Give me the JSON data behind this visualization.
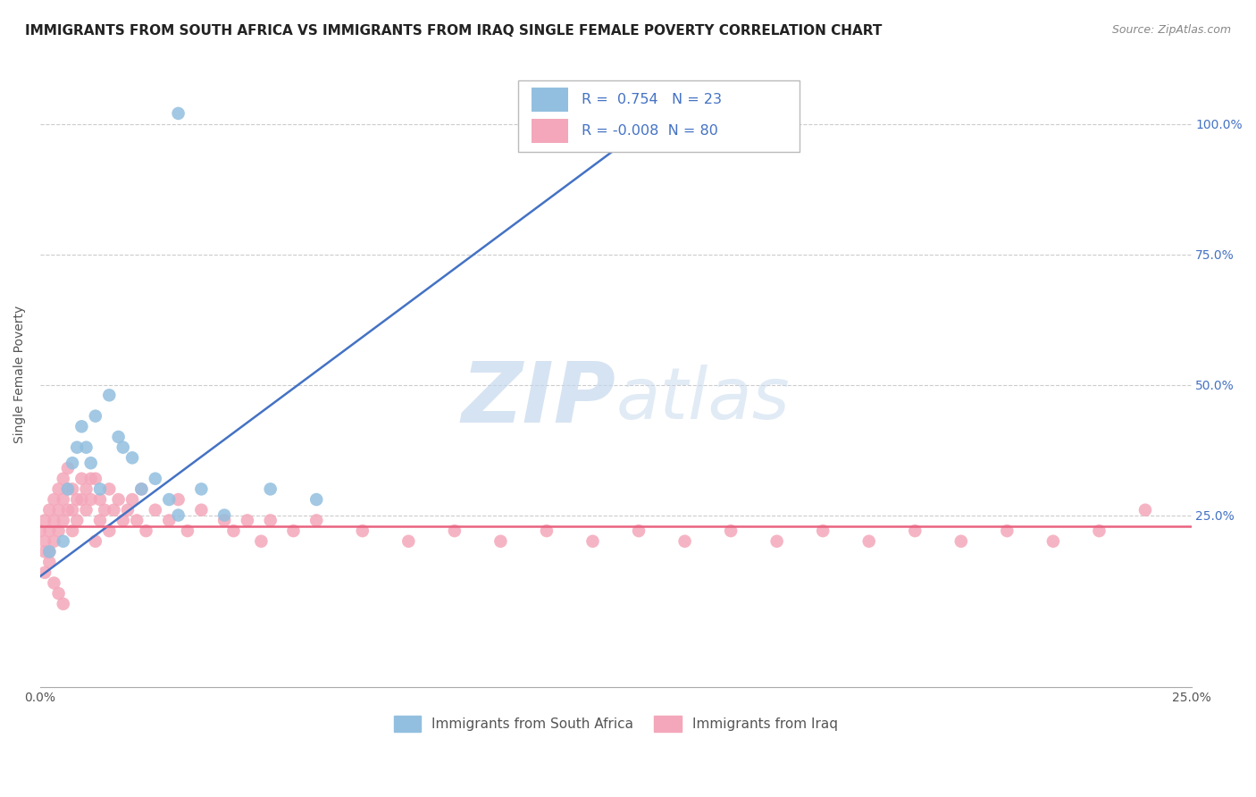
{
  "title": "IMMIGRANTS FROM SOUTH AFRICA VS IMMIGRANTS FROM IRAQ SINGLE FEMALE POVERTY CORRELATION CHART",
  "source": "Source: ZipAtlas.com",
  "ylabel": "Single Female Poverty",
  "watermark_zip": "ZIP",
  "watermark_atlas": "atlas",
  "xlim": [
    0.0,
    0.25
  ],
  "ylim": [
    -0.08,
    1.12
  ],
  "ytick_vals_right": [
    0.25,
    0.5,
    0.75,
    1.0
  ],
  "ytick_labels_right": [
    "25.0%",
    "50.0%",
    "75.0%",
    "100.0%"
  ],
  "blue_color": "#92BFDF",
  "pink_color": "#F4A7BA",
  "blue_line_color": "#4472C4",
  "pink_line_color": "#E9627E",
  "legend_blue_R": "0.754",
  "legend_blue_N": "23",
  "legend_pink_R": "-0.008",
  "legend_pink_N": "80",
  "legend_label_blue": "Immigrants from South Africa",
  "legend_label_pink": "Immigrants from Iraq",
  "blue_scatter_x": [
    0.002,
    0.005,
    0.006,
    0.007,
    0.008,
    0.009,
    0.01,
    0.011,
    0.012,
    0.013,
    0.015,
    0.017,
    0.018,
    0.02,
    0.022,
    0.025,
    0.028,
    0.03,
    0.035,
    0.04,
    0.05,
    0.06,
    0.03
  ],
  "blue_scatter_y": [
    0.18,
    0.2,
    0.3,
    0.35,
    0.38,
    0.42,
    0.38,
    0.35,
    0.44,
    0.3,
    0.48,
    0.4,
    0.38,
    0.36,
    0.3,
    0.32,
    0.28,
    0.25,
    0.3,
    0.25,
    0.3,
    0.28,
    1.02
  ],
  "pink_scatter_x": [
    0.0,
    0.001,
    0.001,
    0.001,
    0.002,
    0.002,
    0.002,
    0.003,
    0.003,
    0.003,
    0.004,
    0.004,
    0.004,
    0.005,
    0.005,
    0.005,
    0.006,
    0.006,
    0.006,
    0.007,
    0.007,
    0.007,
    0.008,
    0.008,
    0.009,
    0.009,
    0.01,
    0.01,
    0.011,
    0.011,
    0.012,
    0.012,
    0.013,
    0.013,
    0.014,
    0.015,
    0.015,
    0.016,
    0.017,
    0.018,
    0.019,
    0.02,
    0.021,
    0.022,
    0.023,
    0.025,
    0.028,
    0.03,
    0.032,
    0.035,
    0.04,
    0.042,
    0.045,
    0.048,
    0.05,
    0.055,
    0.06,
    0.07,
    0.08,
    0.09,
    0.1,
    0.11,
    0.12,
    0.13,
    0.14,
    0.15,
    0.16,
    0.17,
    0.18,
    0.19,
    0.2,
    0.21,
    0.22,
    0.23,
    0.001,
    0.002,
    0.003,
    0.004,
    0.005,
    0.24
  ],
  "pink_scatter_y": [
    0.22,
    0.24,
    0.2,
    0.18,
    0.26,
    0.22,
    0.18,
    0.28,
    0.24,
    0.2,
    0.3,
    0.26,
    0.22,
    0.32,
    0.28,
    0.24,
    0.34,
    0.3,
    0.26,
    0.3,
    0.26,
    0.22,
    0.28,
    0.24,
    0.32,
    0.28,
    0.3,
    0.26,
    0.32,
    0.28,
    0.2,
    0.32,
    0.24,
    0.28,
    0.26,
    0.22,
    0.3,
    0.26,
    0.28,
    0.24,
    0.26,
    0.28,
    0.24,
    0.3,
    0.22,
    0.26,
    0.24,
    0.28,
    0.22,
    0.26,
    0.24,
    0.22,
    0.24,
    0.2,
    0.24,
    0.22,
    0.24,
    0.22,
    0.2,
    0.22,
    0.2,
    0.22,
    0.2,
    0.22,
    0.2,
    0.22,
    0.2,
    0.22,
    0.2,
    0.22,
    0.2,
    0.22,
    0.2,
    0.22,
    0.14,
    0.16,
    0.12,
    0.1,
    0.08,
    0.26
  ],
  "blue_trend_x0": -0.005,
  "blue_trend_x1": 0.14,
  "blue_trend_y0": 0.1,
  "blue_trend_y1": 1.05,
  "pink_trend_y": 0.228,
  "pink_trend_x0": 0.0,
  "pink_trend_x1": 0.25,
  "background_color": "#FFFFFF",
  "grid_color": "#CCCCCC",
  "title_fontsize": 11,
  "axis_label_fontsize": 10,
  "tick_fontsize": 10
}
